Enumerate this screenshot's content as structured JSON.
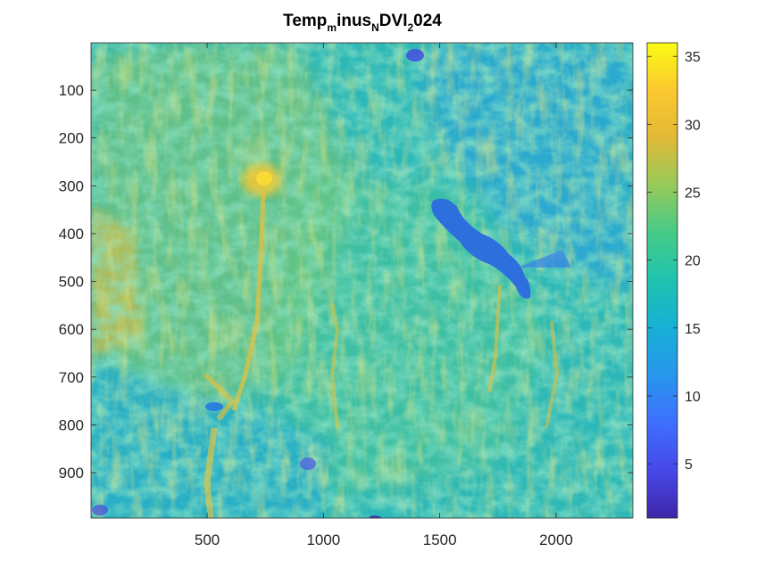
{
  "chart_data": {
    "type": "heatmap",
    "title": "Temp_minus_NDVI_2024",
    "title_parts": [
      {
        "text": "Temp",
        "sub": false
      },
      {
        "text": "m",
        "sub": true
      },
      {
        "text": "inus",
        "sub": false
      },
      {
        "text": "N",
        "sub": true
      },
      {
        "text": "DVI",
        "sub": false
      },
      {
        "text": "2",
        "sub": true
      },
      {
        "text": "024",
        "sub": false
      }
    ],
    "xlabel": "",
    "ylabel": "",
    "xlim": [
      1,
      2330
    ],
    "ylim": [
      1,
      995
    ],
    "y_reversed": true,
    "xticks": [
      500,
      1000,
      1500,
      2000
    ],
    "xtick_labels": [
      "500",
      "1000",
      "1500",
      "2000"
    ],
    "yticks": [
      100,
      200,
      300,
      400,
      500,
      600,
      700,
      800,
      900
    ],
    "ytick_labels": [
      "100",
      "200",
      "300",
      "400",
      "500",
      "600",
      "700",
      "800",
      "900"
    ],
    "colormap": "parula",
    "clim": [
      1,
      36
    ],
    "colorbar": {
      "ticks": [
        5,
        10,
        15,
        20,
        25,
        30,
        35
      ],
      "tick_labels": [
        "5",
        "10",
        "15",
        "20",
        "25",
        "30",
        "35"
      ],
      "location": "right"
    },
    "grid": false,
    "features": [
      {
        "kind": "lake",
        "value": 11
      },
      {
        "kind": "warm-cluster",
        "value": 31
      }
    ]
  }
}
